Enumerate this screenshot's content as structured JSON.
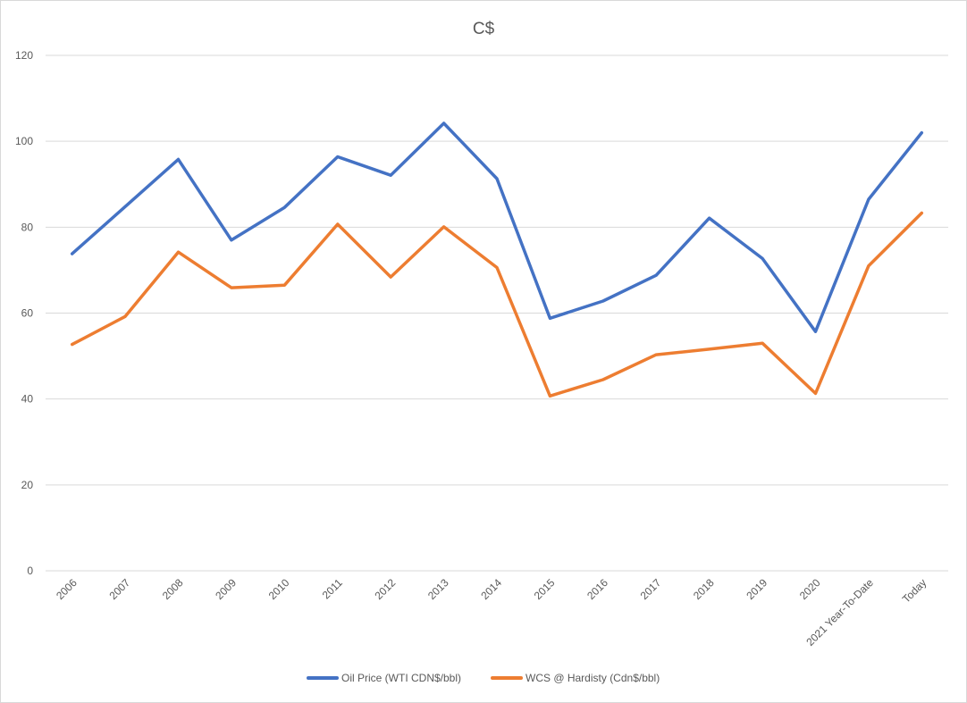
{
  "chart_data": {
    "type": "line",
    "title": "C$",
    "xlabel": "",
    "ylabel": "",
    "ylim": [
      0,
      120
    ],
    "yticks": [
      0,
      20,
      40,
      60,
      80,
      100,
      120
    ],
    "grid": true,
    "legend_position": "bottom",
    "categories": [
      "2006",
      "2007",
      "2008",
      "2009",
      "2010",
      "2011",
      "2012",
      "2013",
      "2014",
      "2015",
      "2016",
      "2017",
      "2018",
      "2019",
      "2020",
      "2021 Year-To-Date",
      "Today"
    ],
    "series": [
      {
        "name": "Oil Price (WTI CDN$/bbl)",
        "color": "#4472c4",
        "values": [
          73.8,
          84.8,
          95.8,
          77.0,
          84.6,
          96.4,
          92.1,
          104.2,
          91.3,
          58.8,
          62.8,
          68.8,
          82.1,
          72.7,
          55.7,
          86.5,
          102.0
        ]
      },
      {
        "name": "WCS @ Hardisty (Cdn$/bbl)",
        "color": "#ed7d31",
        "values": [
          52.7,
          59.2,
          74.2,
          65.9,
          66.5,
          80.7,
          68.4,
          80.1,
          70.6,
          40.7,
          44.5,
          50.3,
          51.6,
          53.0,
          41.3,
          71.0,
          83.3
        ]
      }
    ]
  }
}
